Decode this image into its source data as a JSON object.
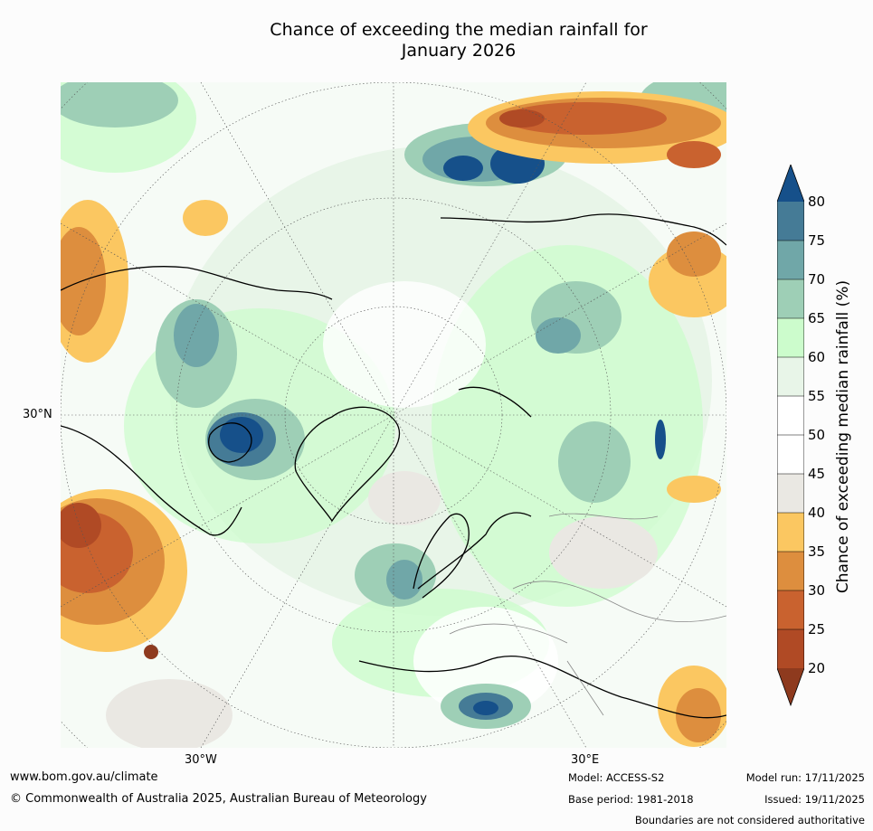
{
  "title": {
    "line1": "Chance of exceeding the median rainfall for",
    "line2": "January 2026"
  },
  "map": {
    "projection": "north-polar-stereographic",
    "lat_labels": [
      "30°N"
    ],
    "lon_labels": [
      "30°W",
      "30°E"
    ],
    "colors": {
      "brown_dark": "#8e3a1e",
      "brown": "#b04a25",
      "orange_dark": "#c9622f",
      "orange": "#dd8e3e",
      "yellow": "#fbc761",
      "grey": "#eae8e3",
      "white": "#ffffff",
      "pale_green": "#e8f5e8",
      "light_green": "#ccfccc",
      "teal_light": "#9ecfb6",
      "teal": "#70a7a8",
      "blue_teal": "#457b96",
      "navy": "#16508a"
    }
  },
  "colorbar": {
    "label": "Chance of exceeding median rainfall (%)",
    "ticks": [
      "80",
      "75",
      "70",
      "65",
      "60",
      "55",
      "50",
      "45",
      "40",
      "35",
      "30",
      "25",
      "20"
    ],
    "band_colors": [
      "#457b96",
      "#70a7a8",
      "#9ecfb6",
      "#ccfccc",
      "#e8f5e8",
      "#ffffff",
      "#ffffff",
      "#eae8e3",
      "#fbc761",
      "#dd8e3e",
      "#c9622f",
      "#b04a25"
    ],
    "upper_extend_color": "#16508a",
    "lower_extend_color": "#8e3a1e"
  },
  "footer": {
    "url": "www.bom.gov.au/climate",
    "copyright": "© Commonwealth of Australia 2025, Australian Bureau of Meteorology",
    "model": "Model: ACCESS-S2",
    "base_period": "Base period: 1981-2018",
    "model_run": "Model run: 17/11/2025",
    "issued": "Issued: 19/11/2025",
    "disclaimer": "Boundaries are not considered authoritative"
  }
}
